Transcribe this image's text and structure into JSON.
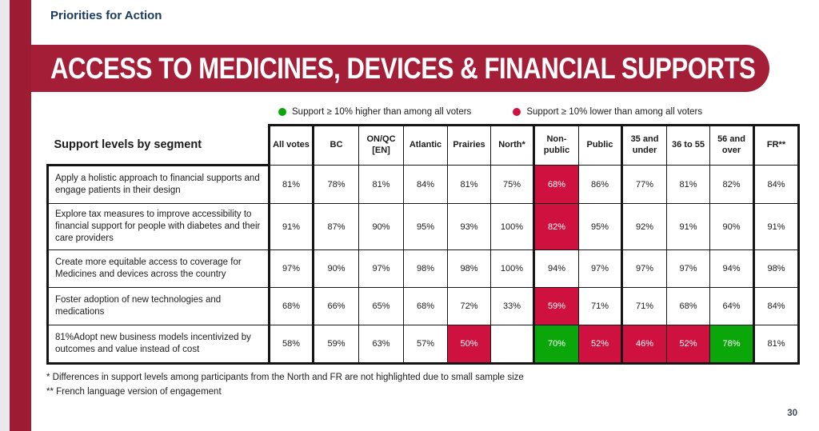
{
  "header": {
    "eyebrow": "Priorities for Action",
    "title": "ACCESS TO MEDICINES, DEVICES & FINANCIAL SUPPORTS"
  },
  "legend": {
    "items": [
      {
        "name": "higher",
        "label": "Support ≥ 10% higher than among all voters",
        "color": "#0aa60a"
      },
      {
        "name": "lower",
        "label": "Support ≥ 10% lower than among all voters",
        "color": "#ce113e"
      }
    ]
  },
  "table": {
    "corner_label": "Support levels by segment",
    "columns": [
      "All votes",
      "BC",
      "ON/QC [EN]",
      "Atlantic",
      "Prairies",
      "North*",
      "Non-public",
      "Public",
      "35 and under",
      "36 to 55",
      "56 and over",
      "FR**"
    ],
    "rows": [
      {
        "label": "Apply a holistic approach to financial supports and engage patients in their design",
        "values": [
          "81%",
          "78%",
          "81%",
          "84%",
          "81%",
          "75%",
          "68%",
          "86%",
          "77%",
          "81%",
          "82%",
          "84%"
        ],
        "highlights": [
          null,
          null,
          null,
          null,
          null,
          null,
          "lower",
          null,
          null,
          null,
          null,
          null
        ]
      },
      {
        "label": "Explore tax measures to improve accessibility to financial support for people with diabetes and their care providers",
        "values": [
          "91%",
          "87%",
          "90%",
          "95%",
          "93%",
          "100%",
          "82%",
          "95%",
          "92%",
          "91%",
          "90%",
          "91%"
        ],
        "highlights": [
          null,
          null,
          null,
          null,
          null,
          null,
          "lower",
          null,
          null,
          null,
          null,
          null
        ]
      },
      {
        "label": "Create more equitable access to coverage for Medicines and devices across the country",
        "values": [
          "97%",
          "90%",
          "97%",
          "98%",
          "98%",
          "100%",
          "94%",
          "97%",
          "97%",
          "97%",
          "94%",
          "98%"
        ],
        "highlights": [
          null,
          null,
          null,
          null,
          null,
          null,
          null,
          null,
          null,
          null,
          null,
          null
        ]
      },
      {
        "label": "Foster adoption of new technologies and medications",
        "values": [
          "68%",
          "66%",
          "65%",
          "68%",
          "72%",
          "33%",
          "59%",
          "71%",
          "71%",
          "68%",
          "64%",
          "84%"
        ],
        "highlights": [
          null,
          null,
          null,
          null,
          null,
          null,
          "lower",
          null,
          null,
          null,
          null,
          null
        ]
      },
      {
        "label": "81%Adopt new business models incentivized by outcomes and value instead of cost",
        "values": [
          "58%",
          "59%",
          "63%",
          "57%",
          "50%",
          "",
          "70%",
          "52%",
          "46%",
          "52%",
          "78%",
          "81%"
        ],
        "highlights": [
          null,
          null,
          null,
          null,
          "lower",
          null,
          "higher",
          "lower",
          "lower",
          "lower",
          "higher",
          null
        ]
      }
    ]
  },
  "footnotes": [
    "* Differences in support levels among participants from the North and FR are not highlighted due to small sample size",
    "** French language version of engagement"
  ],
  "page_number": "30",
  "colors": {
    "banner_red": "#a41e38",
    "sidebar_red": "#9e1c33",
    "heading_navy": "#1b3a5e",
    "highlight_lower": "#ce113e",
    "highlight_higher": "#0aa60a"
  }
}
